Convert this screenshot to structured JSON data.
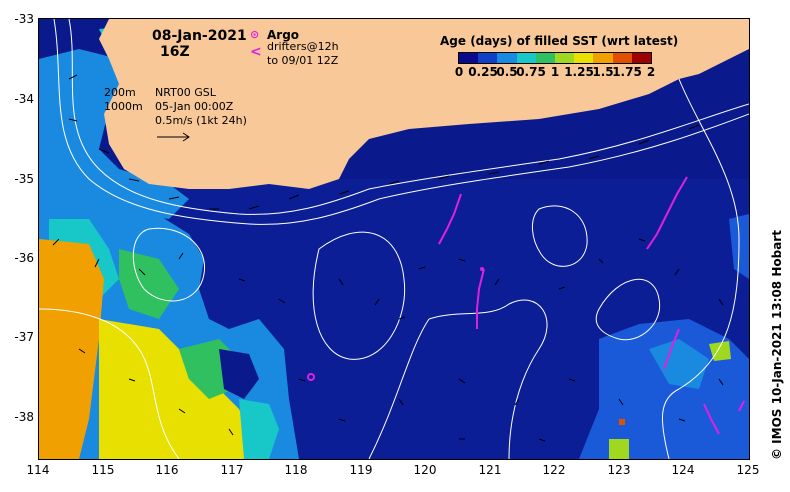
{
  "title": {
    "date": "08-Jan-2021",
    "hour": "16Z"
  },
  "legend": {
    "argo_label": "Argo",
    "drifters_line1": "drifters@12h",
    "drifters_line2": "to 09/01 12Z",
    "argo_color": "#e020e0",
    "drifter_color": "#e020e0"
  },
  "scale_note": {
    "depth1": "200m",
    "depth2": "1000m",
    "product": "NRT00 GSL",
    "time": "05-Jan 00:00Z",
    "vector_scale": "0.5m/s (1kt 24h)"
  },
  "colorbar": {
    "title": "Age (days) of filled SST (wrt latest)",
    "tick_labels": [
      "0",
      "0.25",
      "0.5",
      "0.75",
      "1",
      "1.25",
      "1.5",
      "1.75",
      "2"
    ],
    "colors": [
      "#0a0a8a",
      "#1040c8",
      "#1a8ae0",
      "#18c8c8",
      "#30c060",
      "#a0d820",
      "#e8e000",
      "#f0a000",
      "#e05000",
      "#a00000"
    ]
  },
  "axes": {
    "x_ticks": [
      "114",
      "115",
      "116",
      "117",
      "118",
      "119",
      "120",
      "121",
      "122",
      "123",
      "124",
      "125"
    ],
    "y_ticks": [
      "-33",
      "-34",
      "-35",
      "-36",
      "-37",
      "-38"
    ]
  },
  "credit": "© IMOS 10-Jan-2021 13:08 Hobart",
  "colors": {
    "land": "#f8c898",
    "ocean_fresh": "#0a1a8c",
    "contour": "#ffffff"
  }
}
